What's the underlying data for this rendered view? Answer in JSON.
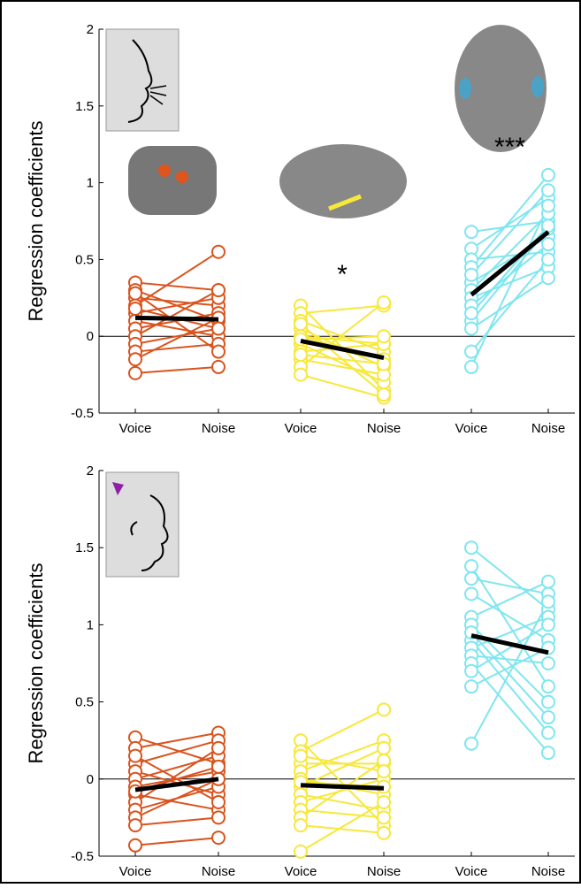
{
  "chart_data": [
    {
      "type": "paired",
      "ylabel": "Regression coefficients",
      "ylim": [
        -0.5,
        2
      ],
      "yticks": [
        -0.5,
        0,
        0.5,
        1,
        1.5,
        2
      ],
      "categories": [
        "Voice",
        "Noise",
        "Voice",
        "Noise",
        "Voice",
        "Noise"
      ],
      "series": [
        {
          "color": "#d9541e",
          "mean": [
            0.12,
            0.11
          ],
          "subjects": [
            [
              0.35,
              0.3
            ],
            [
              0.3,
              0.1
            ],
            [
              0.25,
              0.2
            ],
            [
              0.2,
              0.55
            ],
            [
              0.15,
              0.25
            ],
            [
              0.1,
              0.0
            ],
            [
              0.05,
              0.15
            ],
            [
              0.0,
              0.3
            ],
            [
              -0.05,
              0.05
            ],
            [
              -0.1,
              -0.05
            ],
            [
              -0.15,
              0.12
            ],
            [
              -0.24,
              -0.2
            ],
            [
              0.28,
              -0.1
            ],
            [
              0.18,
              0.05
            ]
          ]
        },
        {
          "color": "#f7e83a",
          "mean": [
            -0.03,
            -0.14
          ],
          "annotation": "*",
          "subjects": [
            [
              0.2,
              -0.35
            ],
            [
              0.15,
              0.2
            ],
            [
              0.1,
              -0.1
            ],
            [
              0.05,
              -0.2
            ],
            [
              0.0,
              -0.15
            ],
            [
              -0.05,
              -0.3
            ],
            [
              -0.1,
              -0.05
            ],
            [
              -0.15,
              -0.25
            ],
            [
              -0.2,
              0.22
            ],
            [
              -0.25,
              -0.4
            ],
            [
              0.0,
              -0.05
            ],
            [
              -0.12,
              -0.18
            ],
            [
              0.08,
              -0.38
            ],
            [
              -0.02,
              0.0
            ]
          ]
        },
        {
          "color": "#7fe6ef",
          "mean": [
            0.27,
            0.68
          ],
          "annotation": "***",
          "subjects": [
            [
              0.68,
              0.75
            ],
            [
              0.57,
              0.9
            ],
            [
              0.5,
              0.55
            ],
            [
              0.45,
              1.05
            ],
            [
              0.35,
              0.65
            ],
            [
              0.3,
              0.8
            ],
            [
              0.25,
              0.45
            ],
            [
              0.2,
              0.6
            ],
            [
              0.1,
              0.7
            ],
            [
              0.05,
              0.38
            ],
            [
              -0.1,
              0.5
            ],
            [
              -0.2,
              0.85
            ],
            [
              0.4,
              0.95
            ],
            [
              0.15,
              0.72
            ]
          ]
        }
      ]
    },
    {
      "type": "paired",
      "ylabel": "Regression coefficients",
      "ylim": [
        -0.5,
        2
      ],
      "yticks": [
        -0.5,
        0,
        0.5,
        1,
        1.5,
        2
      ],
      "categories": [
        "Voice",
        "Noise",
        "Voice",
        "Noise",
        "Voice",
        "Noise"
      ],
      "series": [
        {
          "color": "#d9541e",
          "mean": [
            -0.07,
            0.0
          ],
          "subjects": [
            [
              0.27,
              0.1
            ],
            [
              0.2,
              0.3
            ],
            [
              0.1,
              0.25
            ],
            [
              0.05,
              -0.1
            ],
            [
              0.0,
              0.15
            ],
            [
              -0.05,
              0.05
            ],
            [
              -0.1,
              -0.2
            ],
            [
              -0.15,
              0.2
            ],
            [
              -0.2,
              -0.05
            ],
            [
              -0.25,
              0.0
            ],
            [
              -0.3,
              -0.25
            ],
            [
              -0.43,
              -0.38
            ],
            [
              0.15,
              -0.15
            ],
            [
              -0.08,
              0.08
            ]
          ]
        },
        {
          "color": "#f7e83a",
          "mean": [
            -0.04,
            -0.06
          ],
          "subjects": [
            [
              0.25,
              -0.3
            ],
            [
              0.18,
              0.45
            ],
            [
              0.1,
              0.1
            ],
            [
              0.05,
              0.25
            ],
            [
              0.0,
              -0.1
            ],
            [
              -0.05,
              0.2
            ],
            [
              -0.1,
              -0.2
            ],
            [
              -0.15,
              0.0
            ],
            [
              -0.2,
              -0.25
            ],
            [
              -0.25,
              0.12
            ],
            [
              -0.3,
              -0.35
            ],
            [
              -0.47,
              -0.15
            ],
            [
              0.15,
              0.05
            ],
            [
              -0.02,
              -0.05
            ]
          ]
        },
        {
          "color": "#7fe6ef",
          "mean": [
            0.93,
            0.82
          ],
          "subjects": [
            [
              1.5,
              1.1
            ],
            [
              1.38,
              0.6
            ],
            [
              1.3,
              1.2
            ],
            [
              1.2,
              0.9
            ],
            [
              1.05,
              1.28
            ],
            [
              1.0,
              0.5
            ],
            [
              0.9,
              0.3
            ],
            [
              0.85,
              1.05
            ],
            [
              0.8,
              0.75
            ],
            [
              0.75,
              0.17
            ],
            [
              0.7,
              1.0
            ],
            [
              0.6,
              0.85
            ],
            [
              0.23,
              1.15
            ],
            [
              0.95,
              0.4
            ]
          ]
        }
      ]
    }
  ]
}
